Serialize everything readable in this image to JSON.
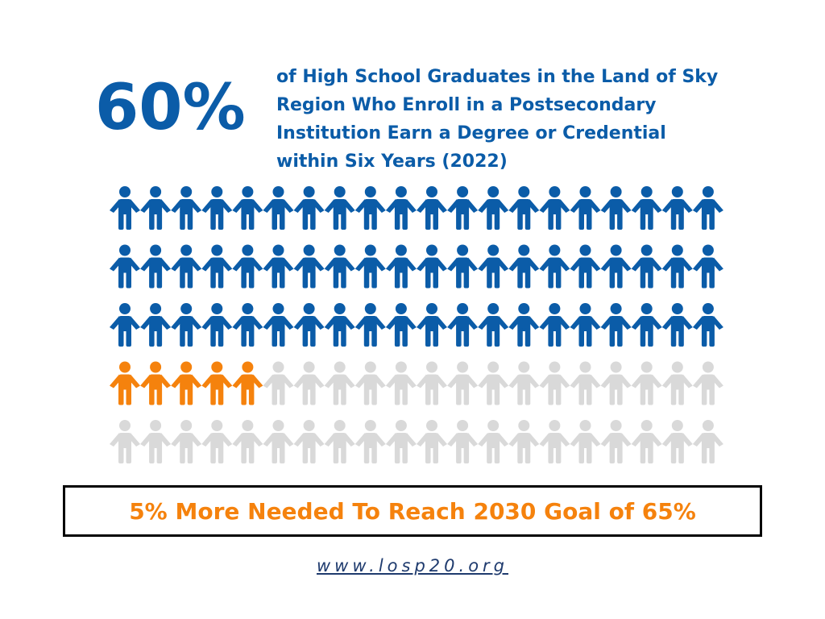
{
  "headline": {
    "stat": "60%",
    "stat_color": "#0b5ca8",
    "description_lines": [
      "of High School Graduates in the Land of Sky",
      "Region Who Enroll in a Postsecondary",
      "Institution Earn a Degree or Credential",
      "within Six Years (2022)"
    ]
  },
  "pictograph": {
    "groups": [
      {
        "count": 60,
        "color": "#0b5ca8"
      },
      {
        "count": 5,
        "color": "#f5820d"
      },
      {
        "count": 35,
        "color": "#d9d9d9"
      }
    ]
  },
  "callout": {
    "text": "5% More Needed To Reach 2030 Goal of 65%",
    "color": "#f5820d"
  },
  "url": "www.losp20.org"
}
